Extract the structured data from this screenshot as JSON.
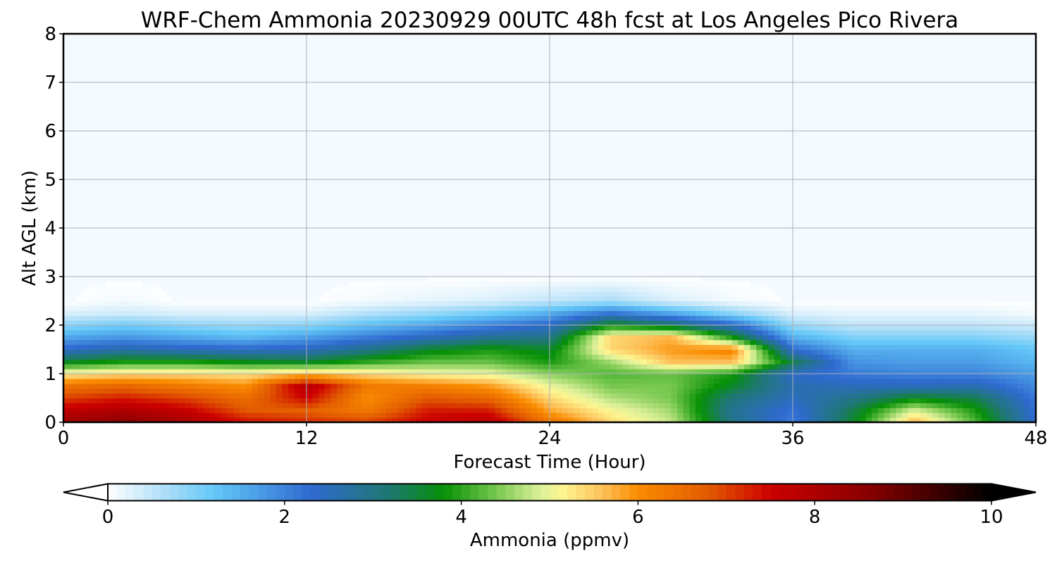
{
  "chart_data": {
    "type": "heatmap",
    "title": "WRF-Chem Ammonia  20230929 00UTC 48h fcst at Los Angeles Pico Rivera",
    "xlabel": "Forecast Time (Hour)",
    "ylabel": "Alt AGL (km)",
    "xlim": [
      0,
      48
    ],
    "ylim": [
      0,
      8
    ],
    "x_ticks": [
      "0",
      "12",
      "24",
      "36",
      "48"
    ],
    "y_ticks": [
      "0",
      "1",
      "2",
      "3",
      "4",
      "5",
      "6",
      "7",
      "8"
    ],
    "grid": true,
    "colorbar": {
      "label": "Ammonia  (ppmv)",
      "range": [
        0,
        10
      ],
      "ticks": [
        "0",
        "2",
        "4",
        "6",
        "8",
        "10"
      ],
      "extend": "both",
      "stops": [
        {
          "value": 0.0,
          "color": "#ffffff"
        },
        {
          "value": 0.6,
          "color": "#b4e0f8"
        },
        {
          "value": 1.2,
          "color": "#64c8f8"
        },
        {
          "value": 2.3,
          "color": "#2f6ad0"
        },
        {
          "value": 3.2,
          "color": "#1e7870"
        },
        {
          "value": 3.8,
          "color": "#069006"
        },
        {
          "value": 4.4,
          "color": "#78c850"
        },
        {
          "value": 4.9,
          "color": "#ddf09a"
        },
        {
          "value": 5.15,
          "color": "#fdf590"
        },
        {
          "value": 5.6,
          "color": "#fdc058"
        },
        {
          "value": 6.0,
          "color": "#fa8c00"
        },
        {
          "value": 6.8,
          "color": "#e25a00"
        },
        {
          "value": 7.5,
          "color": "#cc0000"
        },
        {
          "value": 8.6,
          "color": "#8a0000"
        },
        {
          "value": 10.0,
          "color": "#000000"
        }
      ]
    },
    "grid_hours": [
      0,
      3,
      6,
      9,
      12,
      15,
      18,
      21,
      24,
      27,
      30,
      33,
      36,
      39,
      42,
      45,
      48
    ],
    "grid_altitudes_km": [
      0,
      0.25,
      0.5,
      0.75,
      1.0,
      1.25,
      1.5,
      1.75,
      2.0,
      2.25,
      2.5,
      3.0,
      8.0
    ],
    "values": [
      [
        8.3,
        8.6,
        8.2,
        7.4,
        7.2,
        7.0,
        7.6,
        7.9,
        6.4,
        5.4,
        4.8,
        3.0,
        2.1,
        3.6,
        5.7,
        4.2,
        2.3
      ],
      [
        7.7,
        8.0,
        7.6,
        6.8,
        6.7,
        6.3,
        7.3,
        7.3,
        5.8,
        5.1,
        4.6,
        2.9,
        2.2,
        3.4,
        4.9,
        3.9,
        2.2
      ],
      [
        7.0,
        7.3,
        7.0,
        6.5,
        7.5,
        6.0,
        6.8,
        6.6,
        5.4,
        4.7,
        4.4,
        3.1,
        2.5,
        3.0,
        3.7,
        3.4,
        2.1
      ],
      [
        6.4,
        6.6,
        6.3,
        6.0,
        7.9,
        6.3,
        6.2,
        5.9,
        5.0,
        4.4,
        4.4,
        3.6,
        2.6,
        2.5,
        2.5,
        2.6,
        1.9
      ],
      [
        5.2,
        5.4,
        5.4,
        5.3,
        5.6,
        5.4,
        5.1,
        5.0,
        4.5,
        4.2,
        4.3,
        3.9,
        2.4,
        2.1,
        2.0,
        2.0,
        1.7
      ],
      [
        3.6,
        3.9,
        3.9,
        3.7,
        3.6,
        4.0,
        4.3,
        4.3,
        3.9,
        4.6,
        5.6,
        5.6,
        3.4,
        1.8,
        1.7,
        1.7,
        1.4
      ],
      [
        2.4,
        2.7,
        2.5,
        2.4,
        2.5,
        3.0,
        3.6,
        3.9,
        3.6,
        5.4,
        5.9,
        6.2,
        2.3,
        1.5,
        1.5,
        1.5,
        1.2
      ],
      [
        1.6,
        1.8,
        1.6,
        1.4,
        1.7,
        2.1,
        2.5,
        2.9,
        3.0,
        5.4,
        5.7,
        3.9,
        1.5,
        1.0,
        1.0,
        1.0,
        0.8
      ],
      [
        0.9,
        1.1,
        0.9,
        0.8,
        0.9,
        1.3,
        1.6,
        2.0,
        2.4,
        3.8,
        3.3,
        2.4,
        0.8,
        0.5,
        0.5,
        0.5,
        0.4
      ],
      [
        0.3,
        0.4,
        0.3,
        0.3,
        0.3,
        0.6,
        0.8,
        1.1,
        1.5,
        2.2,
        1.6,
        0.9,
        0.3,
        0.2,
        0.2,
        0.2,
        0.1
      ],
      [
        0.0,
        0.1,
        0.0,
        0.0,
        0.0,
        0.1,
        0.2,
        0.3,
        0.5,
        0.7,
        0.3,
        0.1,
        0.0,
        0.0,
        0.0,
        0.0,
        0.0
      ],
      [
        0.0,
        0.0,
        0.0,
        0.0,
        0.0,
        0.0,
        0.0,
        0.0,
        0.0,
        0.0,
        0.0,
        0.0,
        0.0,
        0.0,
        0.0,
        0.0,
        0.0
      ],
      [
        0.0,
        0.0,
        0.0,
        0.0,
        0.0,
        0.0,
        0.0,
        0.0,
        0.0,
        0.0,
        0.0,
        0.0,
        0.0,
        0.0,
        0.0,
        0.0,
        0.0
      ]
    ]
  }
}
